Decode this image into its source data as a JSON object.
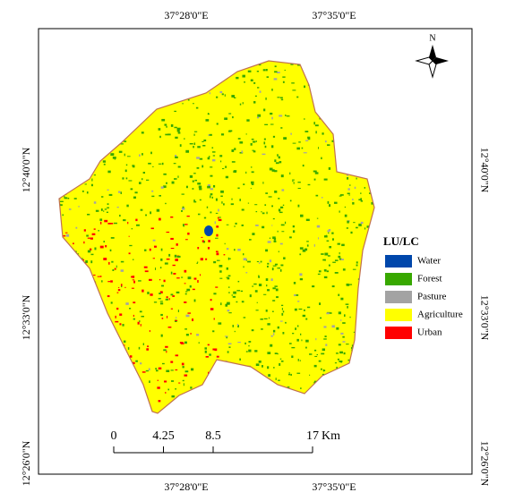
{
  "top_labels": [
    "37°28'0\"E",
    "37°35'0\"E"
  ],
  "bottom_labels": [
    "37°28'0\"E",
    "37°35'0\"E"
  ],
  "left_labels": [
    "12°40'0\"N",
    "12°33'0\"N",
    "12°26'0\"N"
  ],
  "right_labels": [
    "12°40'0\"N",
    "12°33'0\"N",
    "12°26'0\"N"
  ],
  "north": "N",
  "legend": {
    "title": "LU/LC",
    "items": [
      {
        "name": "Water",
        "color": "#0047ab"
      },
      {
        "name": "Forest",
        "color": "#38a800"
      },
      {
        "name": "Pasture",
        "color": "#a3a3a3"
      },
      {
        "name": "Agriculture",
        "color": "#ffff00"
      },
      {
        "name": "Urban",
        "color": "#ff0000"
      }
    ]
  },
  "scale_bar": {
    "ticks": [
      0,
      4.25,
      8.5,
      17
    ],
    "unit": "Km"
  }
}
